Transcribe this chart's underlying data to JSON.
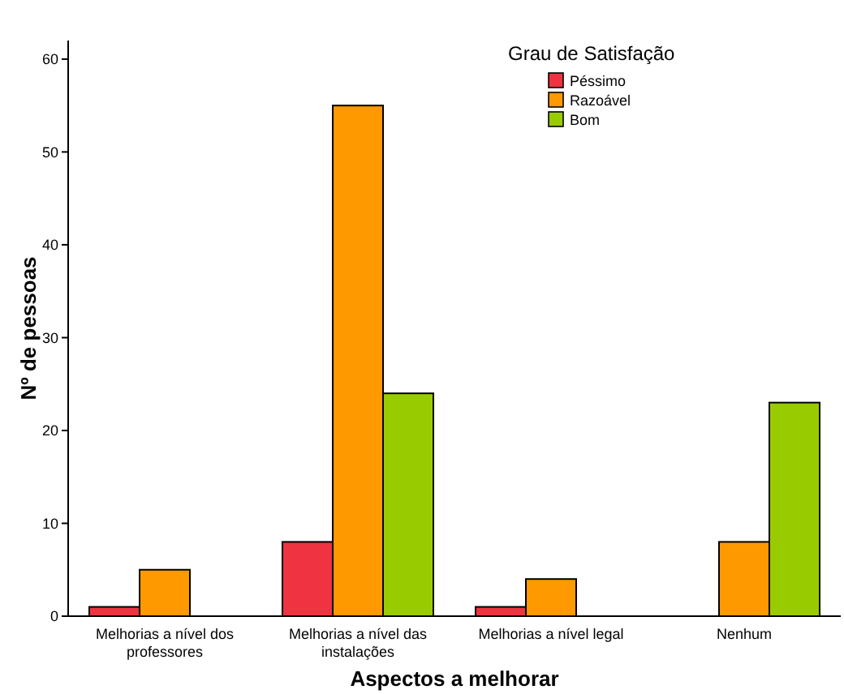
{
  "chart_data": {
    "type": "bar",
    "xlabel": "Aspectos a melhorar",
    "ylabel": "Nº de pessoas",
    "legend_title": "Grau de Satisfação",
    "legend": "top right",
    "categories": [
      "Melhorias a nível dos professores",
      "Melhorias a nível das instalações",
      "Melhorias a nível legal",
      "Nenhum"
    ],
    "series": [
      {
        "name": "Péssimo",
        "color": "#ef3340",
        "values": [
          1,
          8,
          1,
          null
        ]
      },
      {
        "name": "Razoável",
        "color": "#ff9900",
        "values": [
          5,
          55,
          4,
          8
        ]
      },
      {
        "name": "Bom",
        "color": "#99cc00",
        "values": [
          null,
          24,
          null,
          23
        ]
      }
    ],
    "ylim": [
      0,
      62
    ],
    "yticks": [
      0,
      10,
      20,
      30,
      40,
      50,
      60
    ]
  }
}
